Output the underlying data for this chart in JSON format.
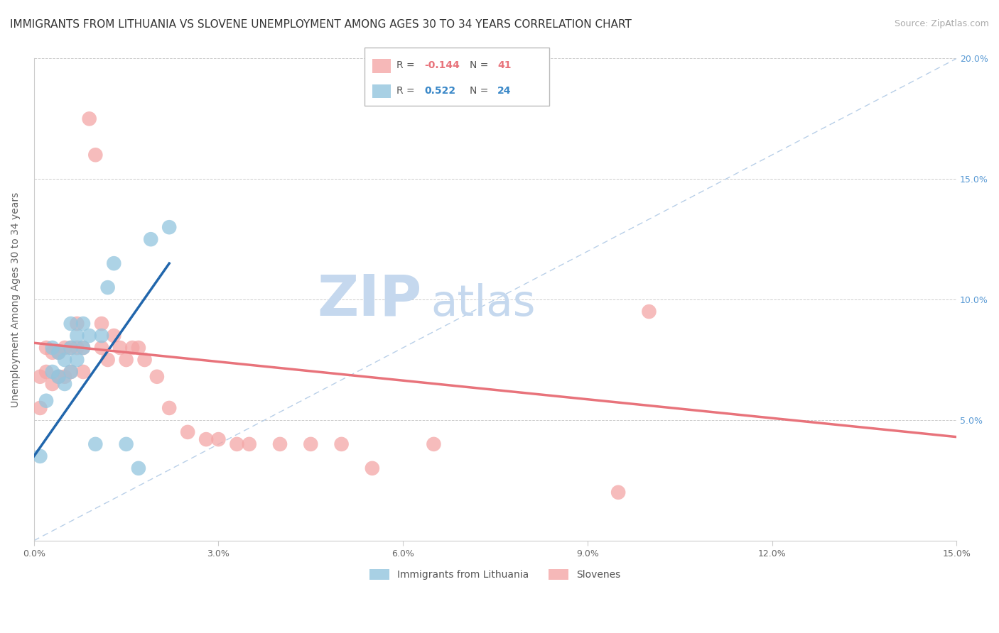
{
  "title": "IMMIGRANTS FROM LITHUANIA VS SLOVENE UNEMPLOYMENT AMONG AGES 30 TO 34 YEARS CORRELATION CHART",
  "source": "Source: ZipAtlas.com",
  "ylabel": "Unemployment Among Ages 30 to 34 years",
  "xlim": [
    0.0,
    0.15
  ],
  "ylim": [
    0.0,
    0.2
  ],
  "xticks": [
    0.0,
    0.03,
    0.06,
    0.09,
    0.12,
    0.15
  ],
  "yticks": [
    0.0,
    0.05,
    0.1,
    0.15,
    0.2
  ],
  "xtick_labels": [
    "0.0%",
    "3.0%",
    "6.0%",
    "9.0%",
    "12.0%",
    "15.0%"
  ],
  "ytick_labels_right": [
    "",
    "5.0%",
    "10.0%",
    "15.0%",
    "20.0%"
  ],
  "blue_R": "0.522",
  "blue_N": "24",
  "pink_R": "-0.144",
  "pink_N": "41",
  "blue_label": "Immigrants from Lithuania",
  "pink_label": "Slovenes",
  "blue_color": "#92c5de",
  "pink_color": "#f4a6a6",
  "blue_line_color": "#2166ac",
  "pink_line_color": "#e8737b",
  "diagonal_color": "#b8cfe8",
  "background_color": "#ffffff",
  "watermark_zip": "ZIP",
  "watermark_atlas": "atlas",
  "watermark_color_zip": "#c5d8ee",
  "watermark_color_atlas": "#c5d8ee",
  "blue_scatter_x": [
    0.001,
    0.002,
    0.003,
    0.003,
    0.004,
    0.004,
    0.005,
    0.005,
    0.006,
    0.006,
    0.006,
    0.007,
    0.007,
    0.008,
    0.008,
    0.009,
    0.01,
    0.011,
    0.012,
    0.013,
    0.015,
    0.017,
    0.019,
    0.022
  ],
  "blue_scatter_y": [
    0.035,
    0.058,
    0.07,
    0.08,
    0.068,
    0.078,
    0.065,
    0.075,
    0.07,
    0.08,
    0.09,
    0.075,
    0.085,
    0.08,
    0.09,
    0.085,
    0.04,
    0.085,
    0.105,
    0.115,
    0.04,
    0.03,
    0.125,
    0.13
  ],
  "pink_scatter_x": [
    0.001,
    0.001,
    0.002,
    0.002,
    0.003,
    0.003,
    0.004,
    0.004,
    0.005,
    0.005,
    0.006,
    0.006,
    0.007,
    0.007,
    0.008,
    0.008,
    0.009,
    0.01,
    0.011,
    0.011,
    0.012,
    0.013,
    0.014,
    0.015,
    0.016,
    0.017,
    0.018,
    0.02,
    0.022,
    0.025,
    0.028,
    0.03,
    0.033,
    0.035,
    0.04,
    0.045,
    0.05,
    0.055,
    0.065,
    0.095,
    0.1
  ],
  "pink_scatter_y": [
    0.055,
    0.068,
    0.07,
    0.08,
    0.065,
    0.078,
    0.068,
    0.078,
    0.068,
    0.08,
    0.07,
    0.08,
    0.08,
    0.09,
    0.07,
    0.08,
    0.175,
    0.16,
    0.08,
    0.09,
    0.075,
    0.085,
    0.08,
    0.075,
    0.08,
    0.08,
    0.075,
    0.068,
    0.055,
    0.045,
    0.042,
    0.042,
    0.04,
    0.04,
    0.04,
    0.04,
    0.04,
    0.03,
    0.04,
    0.02,
    0.095
  ],
  "blue_trendline_x": [
    0.0,
    0.022
  ],
  "blue_trendline_y": [
    0.035,
    0.115
  ],
  "pink_trendline_x": [
    0.0,
    0.15
  ],
  "pink_trendline_y": [
    0.082,
    0.043
  ],
  "title_fontsize": 11,
  "source_fontsize": 9,
  "axis_label_fontsize": 10,
  "tick_fontsize": 9,
  "legend_fontsize": 10
}
